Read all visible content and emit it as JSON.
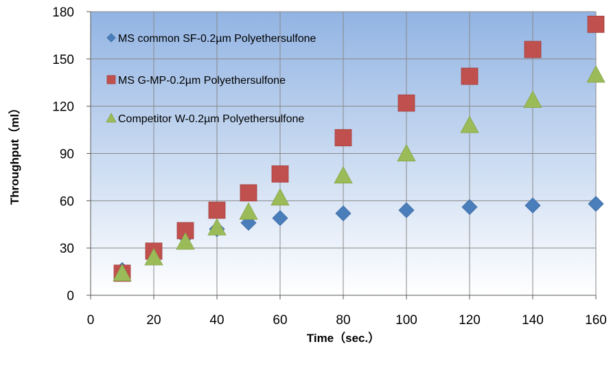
{
  "chart_data": {
    "type": "scatter",
    "xlabel": "Time（sec.）",
    "ylabel": "Throughput（ml）",
    "xlim": [
      0,
      160
    ],
    "ylim": [
      0,
      180
    ],
    "x_ticks": [
      0,
      20,
      40,
      60,
      80,
      100,
      120,
      140,
      160
    ],
    "y_ticks": [
      0,
      30,
      60,
      90,
      120,
      150,
      180
    ],
    "grid": true,
    "legend_position": "top-left",
    "plot_background": {
      "top": "#92b4e3",
      "bottom": "#ffffff"
    },
    "series": [
      {
        "name": "MS common SF-0.2µm Polyethersulfone",
        "marker": "diamond",
        "color": "#4a7ebb",
        "x": [
          10,
          20,
          30,
          40,
          50,
          60,
          80,
          100,
          120,
          140,
          160
        ],
        "y": [
          16,
          27,
          37,
          42,
          46,
          49,
          52,
          54,
          56,
          57,
          58
        ]
      },
      {
        "name": "MS G-MP-0.2µm Polyethersulfone",
        "marker": "square",
        "color": "#c0504d",
        "x": [
          10,
          20,
          30,
          40,
          50,
          60,
          80,
          100,
          120,
          140,
          160
        ],
        "y": [
          14,
          28,
          41,
          54,
          65,
          77,
          100,
          122,
          139,
          156,
          172
        ]
      },
      {
        "name": "Competitor W-0.2µm Polyethersulfone",
        "marker": "triangle",
        "color": "#9bbb59",
        "x": [
          10,
          20,
          30,
          40,
          50,
          60,
          80,
          100,
          120,
          140,
          160
        ],
        "y": [
          14,
          24,
          34,
          43,
          53,
          62,
          76,
          90,
          108,
          124,
          140
        ]
      }
    ]
  }
}
